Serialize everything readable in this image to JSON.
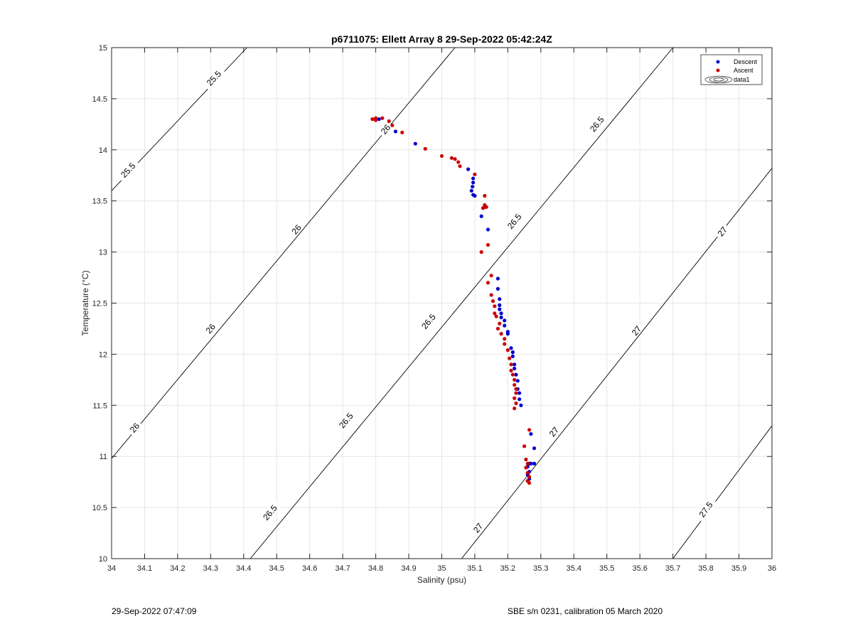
{
  "chart_data": {
    "type": "scatter",
    "title": "p6711075: Ellett Array 8 29-Sep-2022 05:42:24Z",
    "xlabel": "Salinity (psu)",
    "ylabel": "Temperature (°C)",
    "xlim": [
      34,
      36
    ],
    "ylim": [
      10,
      15
    ],
    "xticks": [
      "34",
      "34.1",
      "34.2",
      "34.3",
      "34.4",
      "34.5",
      "34.6",
      "34.7",
      "34.8",
      "34.9",
      "35",
      "35.1",
      "35.2",
      "35.3",
      "35.4",
      "35.5",
      "35.6",
      "35.7",
      "35.8",
      "35.9",
      "36"
    ],
    "yticks": [
      "10",
      "10.5",
      "11",
      "11.5",
      "12",
      "12.5",
      "13",
      "13.5",
      "14",
      "14.5",
      "15"
    ],
    "grid": true,
    "legend_position": "top-right",
    "legend": [
      "Descent",
      "Ascent",
      "data1"
    ],
    "series": [
      {
        "name": "Descent",
        "color": "#0000cc",
        "points": [
          [
            34.81,
            14.3
          ],
          [
            34.86,
            14.18
          ],
          [
            34.92,
            14.06
          ],
          [
            35.08,
            13.81
          ],
          [
            35.095,
            13.72
          ],
          [
            35.095,
            13.68
          ],
          [
            35.093,
            13.64
          ],
          [
            35.09,
            13.6
          ],
          [
            35.095,
            13.56
          ],
          [
            35.1,
            13.55
          ],
          [
            35.12,
            13.35
          ],
          [
            35.13,
            13.44
          ],
          [
            35.14,
            13.22
          ],
          [
            35.17,
            12.74
          ],
          [
            35.17,
            12.64
          ],
          [
            35.175,
            12.54
          ],
          [
            35.175,
            12.48
          ],
          [
            35.175,
            12.44
          ],
          [
            35.18,
            12.4
          ],
          [
            35.18,
            12.36
          ],
          [
            35.19,
            12.33
          ],
          [
            35.19,
            12.28
          ],
          [
            35.2,
            12.22
          ],
          [
            35.2,
            12.2
          ],
          [
            35.21,
            12.06
          ],
          [
            35.215,
            12.02
          ],
          [
            35.215,
            11.98
          ],
          [
            35.22,
            11.9
          ],
          [
            35.22,
            11.86
          ],
          [
            35.225,
            11.8
          ],
          [
            35.23,
            11.74
          ],
          [
            35.23,
            11.66
          ],
          [
            35.235,
            11.62
          ],
          [
            35.235,
            11.56
          ],
          [
            35.24,
            11.5
          ],
          [
            35.27,
            11.22
          ],
          [
            35.28,
            11.08
          ],
          [
            35.265,
            10.93
          ],
          [
            35.27,
            10.93
          ],
          [
            35.28,
            10.93
          ],
          [
            35.26,
            10.9
          ],
          [
            35.265,
            10.85
          ],
          [
            35.26,
            10.82
          ],
          [
            35.265,
            10.78
          ],
          [
            35.26,
            10.76
          ]
        ]
      },
      {
        "name": "Ascent",
        "color": "#cc0000",
        "points": [
          [
            34.79,
            14.3
          ],
          [
            34.8,
            14.31
          ],
          [
            34.8,
            14.29
          ],
          [
            34.82,
            14.31
          ],
          [
            34.84,
            14.28
          ],
          [
            34.85,
            14.24
          ],
          [
            34.88,
            14.17
          ],
          [
            34.95,
            14.01
          ],
          [
            35.0,
            13.94
          ],
          [
            35.03,
            13.92
          ],
          [
            35.04,
            13.91
          ],
          [
            35.05,
            13.88
          ],
          [
            35.055,
            13.84
          ],
          [
            35.1,
            13.76
          ],
          [
            35.13,
            13.55
          ],
          [
            35.13,
            13.46
          ],
          [
            35.135,
            13.44
          ],
          [
            35.125,
            13.43
          ],
          [
            35.14,
            13.07
          ],
          [
            35.12,
            13.0
          ],
          [
            35.15,
            12.77
          ],
          [
            35.14,
            12.7
          ],
          [
            35.15,
            12.58
          ],
          [
            35.155,
            12.52
          ],
          [
            35.16,
            12.47
          ],
          [
            35.16,
            12.4
          ],
          [
            35.165,
            12.37
          ],
          [
            35.175,
            12.3
          ],
          [
            35.17,
            12.25
          ],
          [
            35.18,
            12.2
          ],
          [
            35.19,
            12.15
          ],
          [
            35.19,
            12.1
          ],
          [
            35.2,
            12.04
          ],
          [
            35.205,
            11.96
          ],
          [
            35.21,
            11.9
          ],
          [
            35.21,
            11.84
          ],
          [
            35.215,
            11.8
          ],
          [
            35.22,
            11.75
          ],
          [
            35.22,
            11.7
          ],
          [
            35.225,
            11.66
          ],
          [
            35.225,
            11.62
          ],
          [
            35.22,
            11.57
          ],
          [
            35.225,
            11.52
          ],
          [
            35.22,
            11.47
          ],
          [
            35.25,
            11.1
          ],
          [
            35.265,
            11.26
          ],
          [
            35.255,
            10.97
          ],
          [
            35.26,
            10.93
          ],
          [
            35.255,
            10.89
          ],
          [
            35.26,
            10.84
          ],
          [
            35.265,
            10.8
          ],
          [
            35.26,
            10.76
          ],
          [
            35.265,
            10.74
          ]
        ]
      }
    ],
    "contours": [
      {
        "label": "25.5",
        "p1": [
          34.0,
          13.6
        ],
        "p2": [
          34.41,
          15.0
        ]
      },
      {
        "label": "26",
        "p1": [
          34.0,
          10.98
        ],
        "p2": [
          35.04,
          15.0
        ]
      },
      {
        "label": "26.5",
        "p1": [
          34.42,
          10.0
        ],
        "p2": [
          35.7,
          15.0
        ]
      },
      {
        "label": "27",
        "p1": [
          35.06,
          10.0
        ],
        "p2": [
          36.0,
          13.82
        ]
      },
      {
        "label": "27.5",
        "p1": [
          35.7,
          10.0
        ],
        "p2": [
          36.0,
          11.3
        ]
      }
    ],
    "contour_labels": [
      {
        "text": "25.5",
        "x": 34.31,
        "y": 14.7
      },
      {
        "text": "25.5",
        "x": 34.05,
        "y": 13.8
      },
      {
        "text": "26",
        "x": 34.83,
        "y": 14.2
      },
      {
        "text": "26",
        "x": 34.56,
        "y": 13.22
      },
      {
        "text": "26",
        "x": 34.3,
        "y": 12.25
      },
      {
        "text": "26",
        "x": 34.07,
        "y": 11.28
      },
      {
        "text": "26.5",
        "x": 35.47,
        "y": 14.25
      },
      {
        "text": "26.5",
        "x": 35.22,
        "y": 13.3
      },
      {
        "text": "26.5",
        "x": 34.96,
        "y": 12.32
      },
      {
        "text": "26.5",
        "x": 34.71,
        "y": 11.35
      },
      {
        "text": "26.5",
        "x": 34.48,
        "y": 10.45
      },
      {
        "text": "27",
        "x": 35.85,
        "y": 13.2
      },
      {
        "text": "27",
        "x": 35.59,
        "y": 12.23
      },
      {
        "text": "27",
        "x": 35.34,
        "y": 11.24
      },
      {
        "text": "27",
        "x": 35.11,
        "y": 10.3
      },
      {
        "text": "27.5",
        "x": 35.8,
        "y": 10.48
      }
    ]
  },
  "footer": {
    "left": "29-Sep-2022 07:47:09",
    "right": "SBE s/n 0231, calibration 05 March 2020"
  }
}
